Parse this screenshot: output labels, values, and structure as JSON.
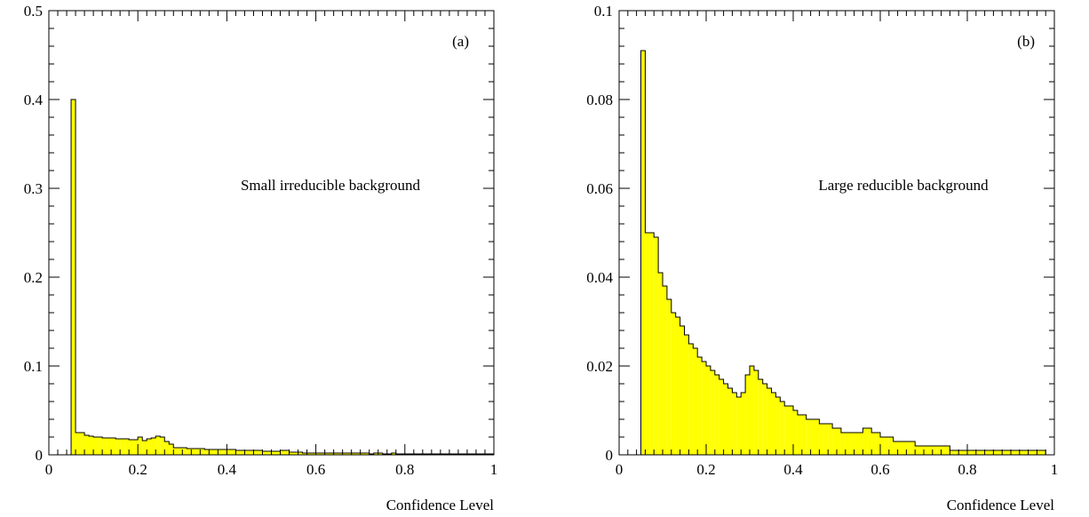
{
  "chart_data": [
    {
      "type": "bar",
      "panel_label": "(a)",
      "annotation": "Small irreducible background",
      "xlabel": "Confidence Level",
      "ylabel": "",
      "xlim": [
        0,
        1
      ],
      "ylim": [
        0,
        0.5
      ],
      "x_ticks": [
        "0",
        "0.2",
        "0.4",
        "0.6",
        "0.8",
        "1"
      ],
      "y_ticks": [
        "0",
        "0.1",
        "0.2",
        "0.3",
        "0.4",
        "0.5"
      ],
      "fill_color": "#ffff00",
      "bin_width": 0.01,
      "bin_start": 0.05,
      "values": [
        0.4,
        0.025,
        0.025,
        0.022,
        0.021,
        0.02,
        0.02,
        0.019,
        0.019,
        0.019,
        0.018,
        0.018,
        0.018,
        0.017,
        0.017,
        0.02,
        0.016,
        0.018,
        0.019,
        0.021,
        0.02,
        0.015,
        0.012,
        0.008,
        0.008,
        0.008,
        0.007,
        0.007,
        0.007,
        0.007,
        0.006,
        0.006,
        0.006,
        0.006,
        0.006,
        0.006,
        0.006,
        0.005,
        0.005,
        0.005,
        0.005,
        0.005,
        0.005,
        0.004,
        0.004,
        0.004,
        0.004,
        0.005,
        0.005,
        0.003,
        0.003,
        0.003,
        0.002,
        0.002,
        0.002,
        0.002,
        0.002,
        0.002,
        0.002,
        0.002,
        0.002,
        0.002,
        0.002,
        0.002,
        0.002,
        0.002,
        0.002,
        0.001,
        0.002,
        0.002,
        0.001,
        0.001,
        0.002,
        0.001,
        0.001,
        0.001,
        0.001,
        0.001,
        0.001,
        0.001,
        0.001,
        0.001,
        0.001,
        0.001,
        0.001,
        0.001,
        0.001,
        0.001,
        0.001,
        0.001,
        0.001,
        0.001,
        0.001,
        0.001,
        0.001
      ]
    },
    {
      "type": "bar",
      "panel_label": "(b)",
      "annotation": "Large reducible background",
      "xlabel": "Confidence Level",
      "ylabel": "",
      "xlim": [
        0,
        1
      ],
      "ylim": [
        0,
        0.1
      ],
      "x_ticks": [
        "0",
        "0.2",
        "0.4",
        "0.6",
        "0.8",
        "1"
      ],
      "y_ticks": [
        "0",
        "0.02",
        "0.04",
        "0.06",
        "0.08",
        "0.1"
      ],
      "fill_color": "#ffff00",
      "bin_width": 0.01,
      "bin_start": 0.05,
      "values": [
        0.091,
        0.05,
        0.05,
        0.049,
        0.041,
        0.038,
        0.035,
        0.032,
        0.031,
        0.029,
        0.027,
        0.025,
        0.024,
        0.022,
        0.021,
        0.02,
        0.019,
        0.018,
        0.017,
        0.016,
        0.015,
        0.014,
        0.013,
        0.014,
        0.018,
        0.02,
        0.019,
        0.017,
        0.016,
        0.015,
        0.014,
        0.013,
        0.012,
        0.011,
        0.011,
        0.01,
        0.009,
        0.009,
        0.008,
        0.008,
        0.008,
        0.007,
        0.007,
        0.007,
        0.006,
        0.006,
        0.005,
        0.005,
        0.005,
        0.005,
        0.005,
        0.006,
        0.006,
        0.005,
        0.005,
        0.004,
        0.004,
        0.004,
        0.003,
        0.003,
        0.003,
        0.003,
        0.003,
        0.002,
        0.002,
        0.002,
        0.002,
        0.002,
        0.002,
        0.002,
        0.002,
        0.001,
        0.001,
        0.001,
        0.001,
        0.001,
        0.001,
        0.001,
        0.001,
        0.001,
        0.001,
        0.001,
        0.001,
        0.001,
        0.001,
        0.001,
        0.001,
        0.001,
        0.001,
        0.001,
        0.001,
        0.001,
        0.001
      ]
    }
  ]
}
